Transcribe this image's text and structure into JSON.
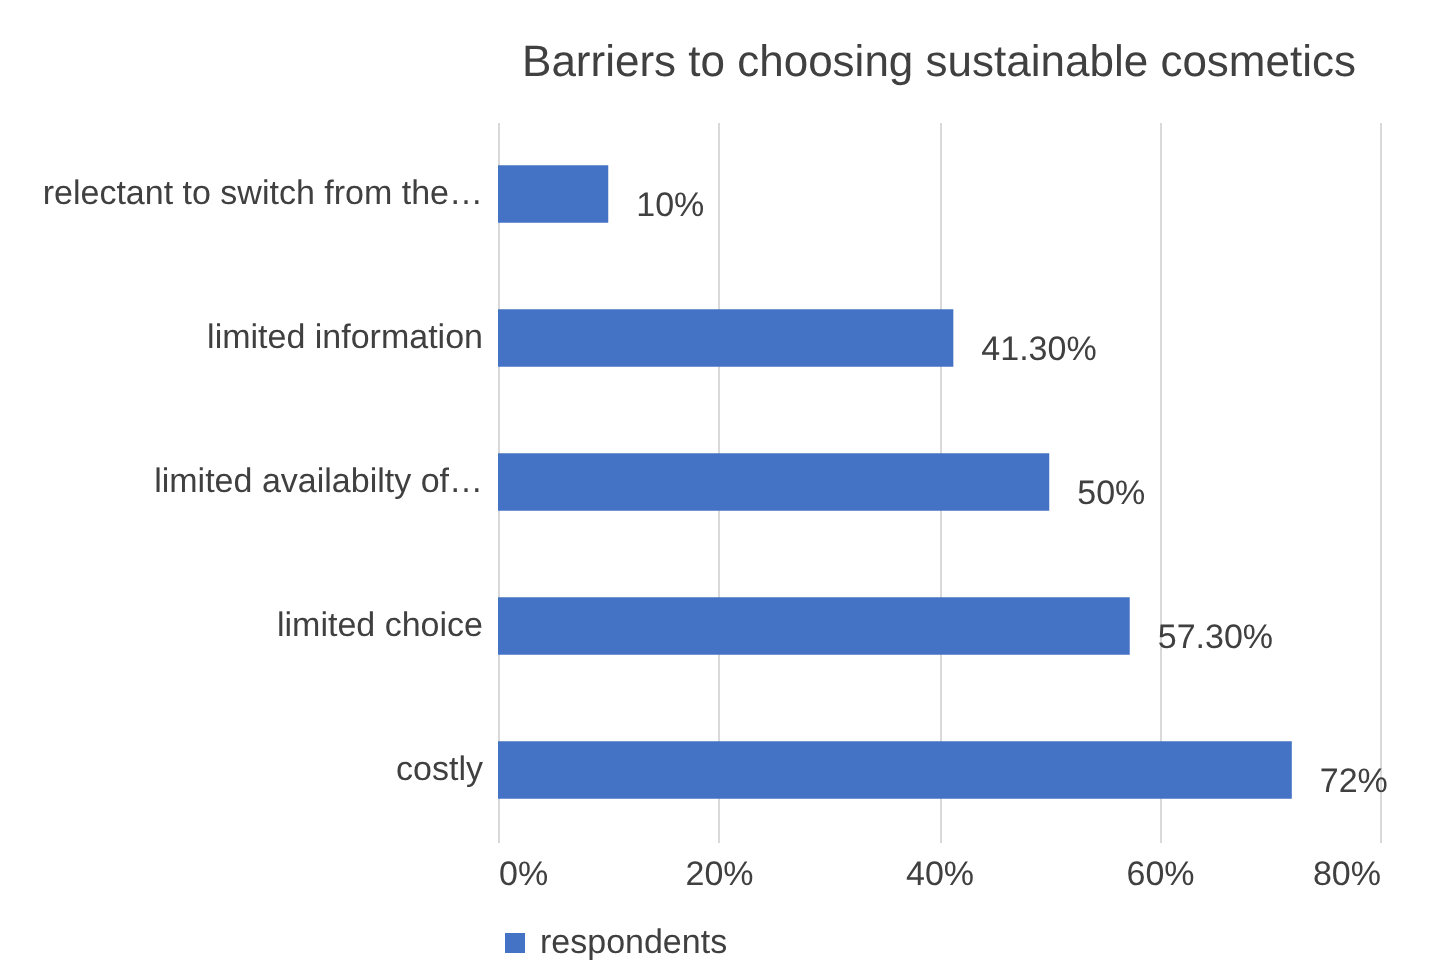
{
  "chart_data": {
    "type": "bar",
    "orientation": "horizontal",
    "title": "Barriers to choosing sustainable cosmetics",
    "categories": [
      "relectant to switch from the…",
      "limited information",
      "limited availabilty of…",
      "limited choice",
      "costly"
    ],
    "series": [
      {
        "name": "respondents",
        "color": "#4472c4",
        "values": [
          10,
          41.3,
          50,
          57.3,
          72
        ],
        "value_labels": [
          "10%",
          "41.30%",
          "50%",
          "57.30%",
          "72%"
        ]
      }
    ],
    "xlim": [
      0,
      80
    ],
    "xticks": [
      {
        "value": 0,
        "label": "0%"
      },
      {
        "value": 20,
        "label": "20%"
      },
      {
        "value": 40,
        "label": "40%"
      },
      {
        "value": 60,
        "label": "60%"
      },
      {
        "value": 80,
        "label": "80%"
      }
    ],
    "grid": "x",
    "legend": "bottom"
  }
}
